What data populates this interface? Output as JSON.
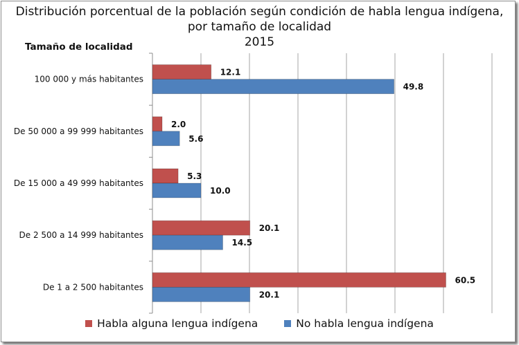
{
  "chart_data": {
    "type": "bar",
    "orientation": "horizontal",
    "title_lines": [
      "Distribución porcentual de la población según condición de habla lengua indígena,",
      "por tamaño de localidad",
      "2015"
    ],
    "ylabel": "Tamaño de localidad",
    "xlabel": "",
    "xlim": [
      0,
      70
    ],
    "grid": true,
    "legend_position": "bottom",
    "categories": [
      "100 000 y más habitantes",
      "De 50 000 a 99 999 habitantes",
      "De 15 000 a 49 999 habitantes",
      "De 2 500 a 14 999 habitantes",
      "De 1 a 2 500 habitantes"
    ],
    "series": [
      {
        "name": "Habla alguna lengua indígena",
        "color": "#c0504d",
        "values": [
          12.1,
          2.0,
          5.3,
          20.1,
          60.5
        ]
      },
      {
        "name": "No habla lengua indígena",
        "color": "#4f81bd",
        "values": [
          49.8,
          5.6,
          10.0,
          14.5,
          20.1
        ]
      }
    ]
  }
}
